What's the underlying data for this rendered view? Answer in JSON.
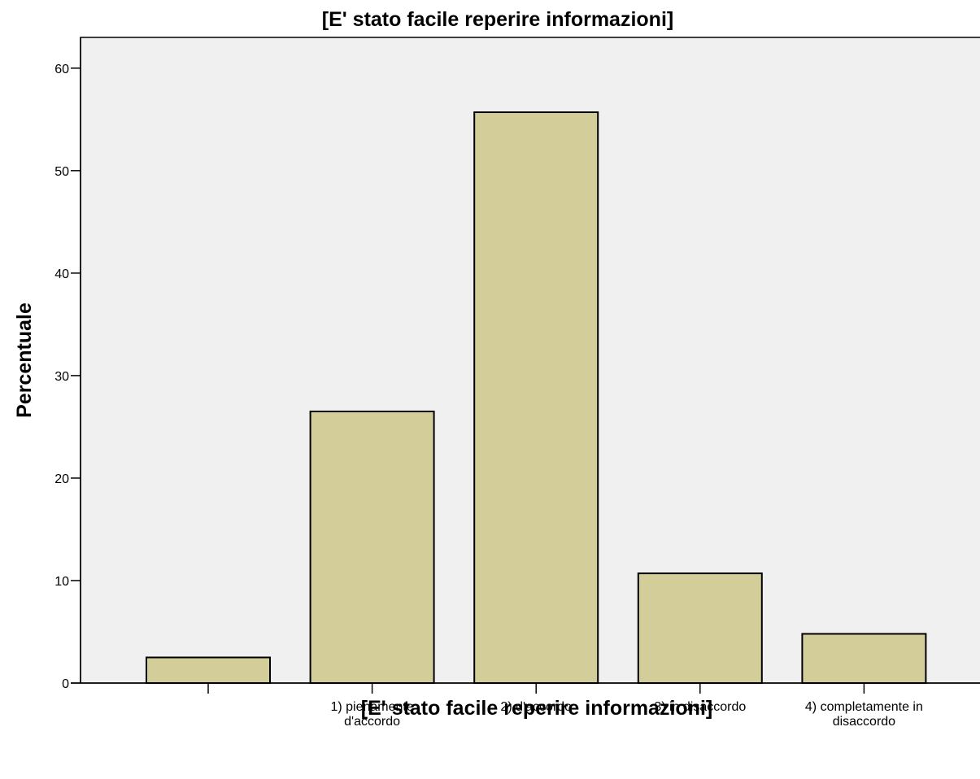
{
  "chart_data": {
    "type": "bar",
    "title": "[E' stato facile reperire informazioni]",
    "xlabel": "[E' stato facile reperire informazioni]",
    "ylabel": "Percentuale",
    "categories": [
      "",
      "1) pienamente d'accordo",
      "2) d'accordo",
      "3) in disaccordo",
      "4) completamente in disaccordo"
    ],
    "category_lines": [
      [],
      [
        "1) pienamente",
        "d'accordo"
      ],
      [
        "2) d'accordo"
      ],
      [
        "3) in disaccordo"
      ],
      [
        "4) completamente in",
        "disaccordo"
      ]
    ],
    "values": [
      2.5,
      26.5,
      55.7,
      10.7,
      4.8
    ],
    "ylim": [
      0,
      63
    ],
    "yticks": [
      0,
      10,
      20,
      30,
      40,
      50,
      60
    ],
    "grid": false,
    "colors": {
      "bar_fill": "#d3cd99",
      "bar_stroke": "#000000",
      "plot_background": "#f0f0f0",
      "page_background": "#ffffff"
    }
  }
}
